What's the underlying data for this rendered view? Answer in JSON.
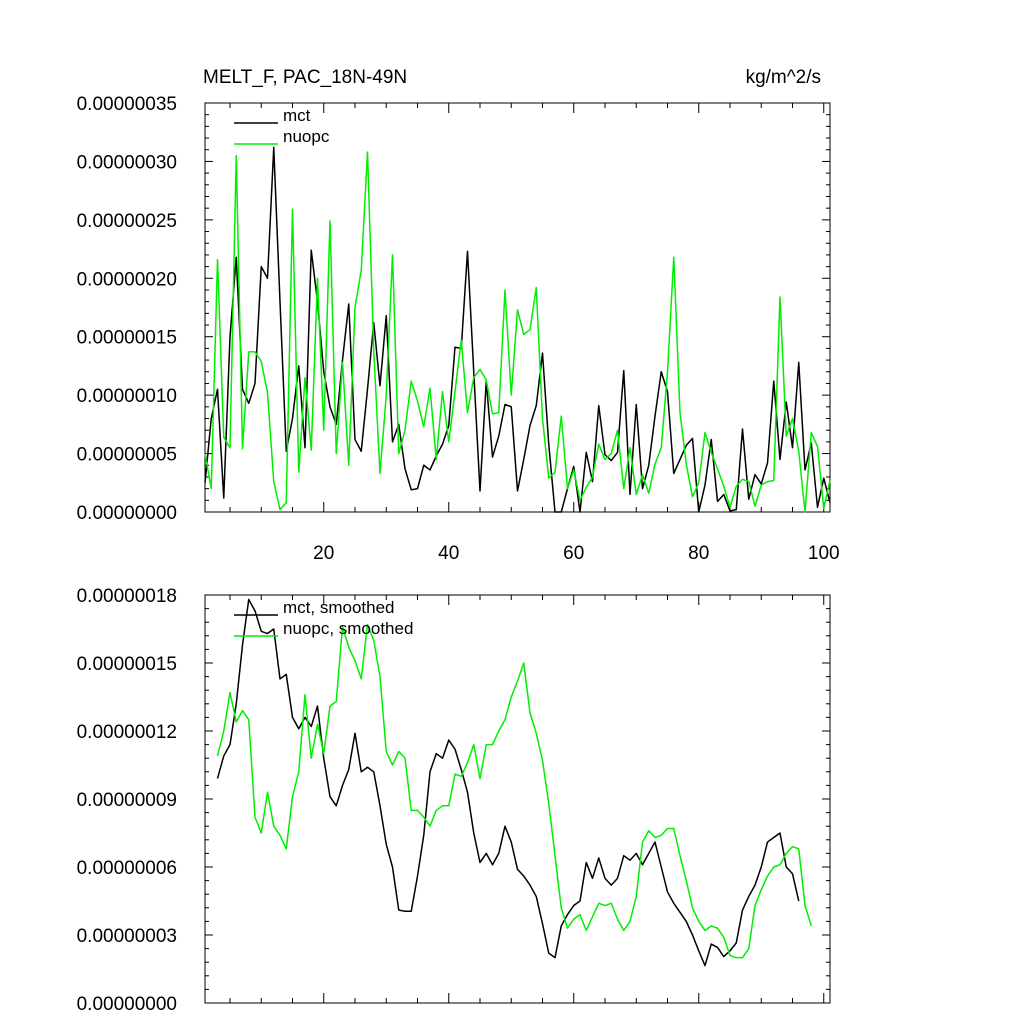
{
  "chart_data": [
    {
      "type": "line",
      "title": "MELT_F, PAC_18N-49N",
      "units": "kg/m^2/s",
      "xlim": [
        1,
        101
      ],
      "ylim": [
        0,
        3.5e-07
      ],
      "x_ticks": [
        20,
        40,
        60,
        80,
        100
      ],
      "x_tick_labels": [
        "20",
        "40",
        "60",
        "80",
        "100"
      ],
      "y_ticks": [
        0,
        5e-08,
        1e-07,
        1.5e-07,
        2e-07,
        2.5e-07,
        3e-07,
        3.5e-07
      ],
      "y_tick_labels": [
        "0.00000000",
        "0.00000005",
        "0.00000010",
        "0.00000015",
        "0.00000020",
        "0.00000025",
        "0.00000030",
        "0.00000035"
      ],
      "legend": {
        "placement": "top-left"
      },
      "series": [
        {
          "name": "mct",
          "color": "#000000",
          "x_start": 1,
          "values": [
            2.5e-08,
            8e-08,
            1.05e-07,
            1.2e-08,
            1.5e-07,
            2.18e-07,
            1.05e-07,
            9.3e-08,
            1.1e-07,
            2.1e-07,
            2e-07,
            3.12e-07,
            1.8e-07,
            5.2e-08,
            8e-08,
            1.25e-07,
            5.5e-08,
            2.24e-07,
            1.8e-07,
            1.2e-07,
            9e-08,
            7.5e-08,
            1.3e-07,
            1.78e-07,
            6.2e-08,
            5.2e-08,
            1.05e-07,
            1.62e-07,
            1.08e-07,
            1.68e-07,
            6e-08,
            7.5e-08,
            3.7e-08,
            1.9e-08,
            2e-08,
            4e-08,
            3.6e-08,
            4.8e-08,
            5.8e-08,
            7.4e-08,
            1.41e-07,
            1.4e-07,
            2.23e-07,
            1.2e-07,
            1.8e-08,
            1.12e-07,
            4.7e-08,
            6.5e-08,
            9.2e-08,
            9e-08,
            1.8e-08,
            4.5e-08,
            7.4e-08,
            9.1e-08,
            1.36e-07,
            5.8e-08,
            0,
            0,
            2e-08,
            3.9e-08,
            0,
            5.1e-08,
            2.6e-08,
            9.1e-08,
            4.9e-08,
            4.4e-08,
            5.1e-08,
            1.21e-07,
            1.5e-08,
            9.2e-08,
            2e-08,
            4e-08,
            8.2e-08,
            1.2e-07,
            1.03e-07,
            3.3e-08,
            4.5e-08,
            5.7e-08,
            6.3e-08,
            0,
            2.3e-08,
            6.2e-08,
            9e-09,
            1.5e-08,
            1e-09,
            2e-09,
            7.1e-08,
            1.1e-08,
            3.2e-08,
            2.4e-08,
            4.2e-08,
            1.12e-07,
            4.5e-08,
            9.4e-08,
            5.5e-08,
            1.28e-07,
            3.6e-08,
            5.9e-08,
            4e-09,
            2.9e-08,
            8e-09
          ]
        },
        {
          "name": "nuopc",
          "color": "#00ee00",
          "x_start": 1,
          "values": [
            5e-08,
            2e-08,
            2.16e-07,
            6.4e-08,
            5.5e-08,
            3.05e-07,
            5.4e-08,
            1.37e-07,
            1.37e-07,
            1.29e-07,
            1.02e-07,
            2.6e-08,
            2e-09,
            8e-09,
            2.59e-07,
            3.4e-08,
            1.15e-07,
            5.3e-08,
            2e-07,
            7e-08,
            2.49e-07,
            5e-08,
            1.28e-07,
            4e-08,
            1.75e-07,
            2.07e-07,
            3.08e-07,
            1.38e-07,
            3.3e-08,
            1e-07,
            2.2e-07,
            5e-08,
            7e-08,
            1.12e-07,
            9.5e-08,
            7.3e-08,
            1.06e-07,
            4.5e-08,
            1.03e-07,
            6e-08,
            1.03e-07,
            1.47e-07,
            8.5e-08,
            1.15e-07,
            1.22e-07,
            1.13e-07,
            8.4e-08,
            8.5e-08,
            1.9e-07,
            1e-07,
            1.73e-07,
            1.52e-07,
            1.56e-07,
            1.92e-07,
            8e-08,
            2.9e-08,
            3.4e-08,
            8.2e-08,
            2e-08,
            3.6e-08,
            1e-08,
            2.1e-08,
            3e-08,
            5.8e-08,
            4.5e-08,
            5e-08,
            7e-08,
            2e-08,
            5.5e-08,
            1.5e-08,
            3.2e-08,
            1.6e-08,
            4.1e-08,
            5.5e-08,
            1.2e-07,
            2.18e-07,
            8.5e-08,
            4.1e-08,
            1.3e-08,
            2.5e-08,
            6.8e-08,
            5.1e-08,
            3.7e-08,
            2.2e-08,
            4e-09,
            2.2e-08,
            2.8e-08,
            2.6e-08,
            5e-09,
            2.3e-08,
            2.6e-08,
            2.7e-08,
            1.84e-07,
            6.5e-08,
            8e-08,
            5.2e-08,
            0,
            6.8e-08,
            5.6e-08,
            3e-09,
            2.7e-08
          ]
        }
      ]
    },
    {
      "type": "line",
      "title": "",
      "xlim": [
        1,
        101
      ],
      "ylim": [
        0,
        1.8e-07
      ],
      "x_ticks": [
        20,
        40,
        60,
        80,
        100
      ],
      "y_ticks": [
        0,
        3e-08,
        6e-08,
        9e-08,
        1.2e-07,
        1.5e-07,
        1.8e-07
      ],
      "y_tick_labels": [
        "0.00000000",
        "0.00000003",
        "0.00000006",
        "0.00000009",
        "0.00000012",
        "0.00000015",
        "0.00000018"
      ],
      "legend": {
        "placement": "top-left"
      },
      "series": [
        {
          "name": "mct, smoothed",
          "color": "#000000",
          "x_start": 3,
          "values": [
            9.9e-08,
            1.09e-07,
            1.14e-07,
            1.32e-07,
            1.58e-07,
            1.78e-07,
            1.73e-07,
            1.64e-07,
            1.63e-07,
            1.65e-07,
            1.43e-07,
            1.45e-07,
            1.26e-07,
            1.21e-07,
            1.26e-07,
            1.22e-07,
            1.31e-07,
            1.08e-07,
            9.1e-08,
            8.7e-08,
            9.6e-08,
            1.03e-07,
            1.19e-07,
            1.02e-07,
            1.04e-07,
            1.02e-07,
            8.7e-08,
            7e-08,
            6e-08,
            4.1e-08,
            4.05e-08,
            4.05e-08,
            5.6e-08,
            7.4e-08,
            1.02e-07,
            1.1e-07,
            1.08e-07,
            1.16e-07,
            1.12e-07,
            1.03e-07,
            9.3e-08,
            7.5e-08,
            6.2e-08,
            6.6e-08,
            6.1e-08,
            6.6e-08,
            7.8e-08,
            7.1e-08,
            5.9e-08,
            5.6e-08,
            5.2e-08,
            4.7e-08,
            3.5e-08,
            2.2e-08,
            2e-08,
            3.4e-08,
            3.9e-08,
            4.3e-08,
            4.5e-08,
            6.2e-08,
            5.5e-08,
            6.4e-08,
            5.5e-08,
            5.2e-08,
            5.5e-08,
            6.5e-08,
            6.3e-08,
            6.6e-08,
            6.1e-08,
            6.6e-08,
            7.1e-08,
            6e-08,
            4.9e-08,
            4.4e-08,
            4e-08,
            3.6e-08,
            3e-08,
            2.3e-08,
            1.65e-08,
            2.6e-08,
            2.45e-08,
            2.05e-08,
            2.3e-08,
            2.65e-08,
            4.1e-08,
            4.7e-08,
            5.2e-08,
            6e-08,
            7.1e-08,
            7.3e-08,
            7.5e-08,
            6e-08,
            5.7e-08,
            4.5e-08
          ]
        },
        {
          "name": "nuopc, smoothed",
          "color": "#00ee00",
          "x_start": 3,
          "values": [
            1.09e-07,
            1.2e-07,
            1.37e-07,
            1.24e-07,
            1.29e-07,
            1.25e-07,
            8.2e-08,
            7.5e-08,
            9.3e-08,
            7.8e-08,
            7.4e-08,
            6.8e-08,
            9.1e-08,
            1.02e-07,
            1.36e-07,
            1.08e-07,
            1.23e-07,
            1.1e-07,
            1.31e-07,
            1.33e-07,
            1.66e-07,
            1.57e-07,
            1.51e-07,
            1.43e-07,
            1.67e-07,
            1.6e-07,
            1.44e-07,
            1.11e-07,
            1.05e-07,
            1.11e-07,
            1.08e-07,
            8.5e-08,
            8.5e-08,
            8.2e-08,
            7.8e-08,
            8.5e-08,
            8.7e-08,
            8.7e-08,
            1.01e-07,
            1e-07,
            1.06e-07,
            1.14e-07,
            9.9e-08,
            1.14e-07,
            1.14e-07,
            1.2e-07,
            1.25e-07,
            1.35e-07,
            1.42e-07,
            1.5e-07,
            1.28e-07,
            1.19e-07,
            1.07e-07,
            8.8e-08,
            6.5e-08,
            4.2e-08,
            3.3e-08,
            3.7e-08,
            3.9e-08,
            3.2e-08,
            3.8e-08,
            4.4e-08,
            4.3e-08,
            4.4e-08,
            3.7e-08,
            3.2e-08,
            3.6e-08,
            4.7e-08,
            7.1e-08,
            7.6e-08,
            7.3e-08,
            7.4e-08,
            7.7e-08,
            7.7e-08,
            6.5e-08,
            5.4e-08,
            4.2e-08,
            3.6e-08,
            3.2e-08,
            3.4e-08,
            3.3e-08,
            2.9e-08,
            2.1e-08,
            2e-08,
            2e-08,
            2.4e-08,
            4.3e-08,
            5e-08,
            5.6e-08,
            6e-08,
            6.1e-08,
            6.6e-08,
            6.9e-08,
            6.8e-08,
            4.3e-08,
            3.4e-08
          ]
        }
      ]
    }
  ]
}
